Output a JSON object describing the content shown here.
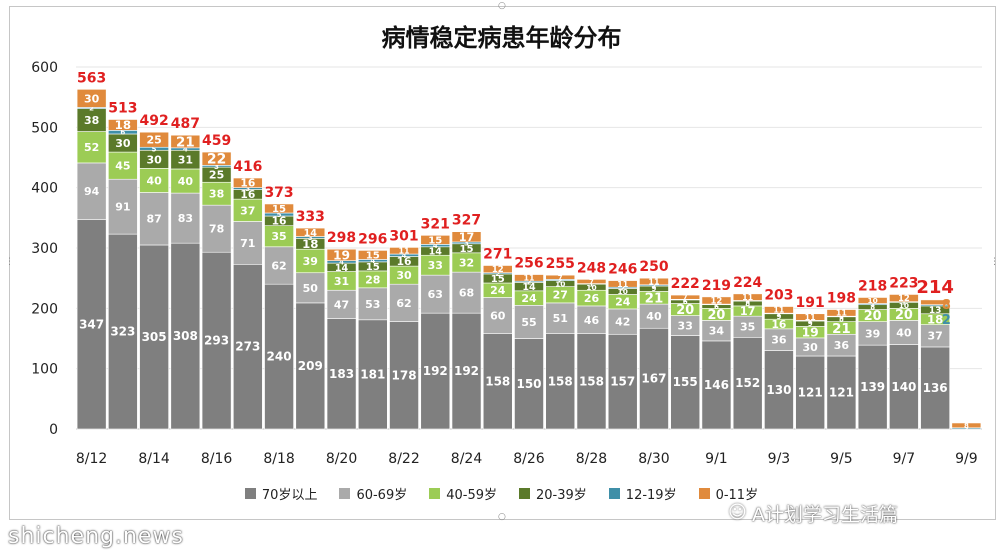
{
  "chart_data": {
    "type": "bar",
    "stacked": true,
    "title": "病情稳定病患年龄分布",
    "ylim": [
      0,
      600
    ],
    "yticks": [
      0,
      100,
      200,
      300,
      400,
      500,
      600
    ],
    "grid": true,
    "legend_position": "bottom",
    "categories": [
      "8/12",
      "8/13",
      "8/14",
      "8/15",
      "8/16",
      "8/17",
      "8/18",
      "8/19",
      "8/20",
      "8/21",
      "8/22",
      "8/23",
      "8/24",
      "8/25",
      "8/26",
      "8/27",
      "8/28",
      "8/29",
      "8/30",
      "8/31",
      "9/1",
      "9/2",
      "9/3",
      "9/4",
      "9/5",
      "9/6",
      "9/7",
      "9/8",
      "9/9"
    ],
    "tick_labels": [
      "8/12",
      "",
      "8/14",
      "",
      "8/16",
      "",
      "8/18",
      "",
      "8/20",
      "",
      "8/22",
      "",
      "8/24",
      "",
      "8/26",
      "",
      "8/28",
      "",
      "8/30",
      "",
      "9/1",
      "",
      "9/3",
      "",
      "9/5",
      "",
      "9/7",
      "",
      "9/9"
    ],
    "series": [
      {
        "name": "70岁以上",
        "color": "#7f7f7f",
        "values": [
          347,
          323,
          305,
          308,
          293,
          273,
          240,
          209,
          183,
          181,
          178,
          192,
          192,
          158,
          150,
          158,
          158,
          157,
          167,
          155,
          146,
          152,
          130,
          121,
          121,
          139,
          140,
          136,
          0
        ]
      },
      {
        "name": "60-69岁",
        "color": "#aaaaaa",
        "values": [
          94,
          91,
          87,
          83,
          78,
          71,
          62,
          50,
          47,
          53,
          62,
          63,
          68,
          60,
          55,
          51,
          46,
          42,
          40,
          33,
          34,
          35,
          36,
          30,
          36,
          39,
          40,
          37,
          0
        ]
      },
      {
        "name": "40-59岁",
        "color": "#9ccc55",
        "values": [
          52,
          45,
          40,
          40,
          38,
          37,
          35,
          39,
          31,
          28,
          30,
          33,
          32,
          24,
          24,
          27,
          26,
          24,
          21,
          20,
          20,
          17,
          16,
          19,
          21,
          20,
          20,
          18,
          0
        ]
      },
      {
        "name": "20-39岁",
        "color": "#5b7a2a",
        "values": [
          38,
          30,
          30,
          31,
          25,
          16,
          16,
          18,
          14,
          15,
          16,
          14,
          15,
          15,
          14,
          10,
          10,
          10,
          9,
          6,
          6,
          8,
          9,
          9,
          8,
          8,
          10,
          13,
          0
        ]
      },
      {
        "name": "12-19岁",
        "color": "#3f8fa8",
        "values": [
          2,
          6,
          5,
          4,
          3,
          3,
          5,
          3,
          4,
          4,
          4,
          4,
          3,
          2,
          2,
          2,
          1,
          2,
          2,
          1,
          1,
          1,
          1,
          1,
          1,
          2,
          1,
          2,
          2
        ]
      },
      {
        "name": "0-11岁",
        "color": "#e08a3c",
        "values": [
          30,
          18,
          25,
          21,
          22,
          16,
          15,
          14,
          19,
          15,
          11,
          15,
          17,
          12,
          11,
          7,
          7,
          11,
          11,
          7,
          12,
          11,
          11,
          11,
          11,
          10,
          12,
          8,
          8
        ]
      }
    ],
    "totals": [
      "563",
      "513",
      "492",
      "487",
      "459",
      "416",
      "373",
      "333",
      "298",
      "296",
      "301",
      "321",
      "327",
      "271",
      "256",
      "255",
      "248",
      "246",
      "250",
      "222",
      "219",
      "224",
      "203",
      "191",
      "198",
      "218",
      "223",
      "214",
      ""
    ],
    "value_labels": [
      [
        "347",
        "323",
        "305",
        "308",
        "293",
        "273",
        "240",
        "209",
        "183",
        "181",
        "178",
        "192",
        "192",
        "158",
        "150",
        "158",
        "158",
        "157",
        "167",
        "155",
        "146",
        "152",
        "130",
        "121",
        "121",
        "139",
        "140",
        "136",
        ""
      ],
      [
        "94",
        "91",
        "87",
        "83",
        "78",
        "71",
        "62",
        "50",
        "47",
        "53",
        "62",
        "63",
        "68",
        "60",
        "55",
        "51",
        "46",
        "42",
        "40",
        "33",
        "34",
        "35",
        "36",
        "30",
        "36",
        "39",
        "40",
        "37",
        ""
      ],
      [
        "52",
        "45",
        "40",
        "40",
        "38",
        "37",
        "35",
        "39",
        "31",
        "28",
        "30",
        "33",
        "32",
        "24",
        "24",
        "27",
        "26",
        "24",
        "21",
        "20",
        "20",
        "17",
        "16",
        "19",
        "21",
        "20",
        "20",
        "18",
        ""
      ],
      [
        "38",
        "30",
        "30",
        "31",
        "25",
        "16",
        "16",
        "18",
        "14",
        "15",
        "16",
        "14",
        "15",
        "15",
        "14",
        "10",
        "10",
        "10",
        "9",
        "6",
        "6",
        "8",
        "9",
        "9",
        "8",
        "8",
        "10",
        "13",
        ""
      ],
      [
        "2",
        "6",
        "5",
        "4",
        "3",
        "3",
        "5",
        "3",
        "4",
        "4",
        "4",
        "4",
        "3",
        "2",
        "2",
        "2",
        "1",
        "2",
        "2",
        "1",
        "1",
        "1",
        "1",
        "1",
        "1",
        "2",
        "1",
        "",
        "2"
      ],
      [
        "30",
        "18",
        "25",
        "21",
        "22",
        "16",
        "15",
        "14",
        "19",
        "15",
        "11",
        "15",
        "17",
        "12",
        "11",
        "7",
        "7",
        "11",
        "11",
        "7",
        "12",
        "11",
        "11",
        "11",
        "11",
        "10",
        "12",
        "",
        "8"
      ]
    ]
  },
  "watermark": "A计划学习生活篇",
  "wm_icon": "☺",
  "site_text": "shicheng.news",
  "colors": {
    "total_label": "#e02020",
    "grid": "#e6e6e6",
    "axis": "#bfbfbf"
  }
}
